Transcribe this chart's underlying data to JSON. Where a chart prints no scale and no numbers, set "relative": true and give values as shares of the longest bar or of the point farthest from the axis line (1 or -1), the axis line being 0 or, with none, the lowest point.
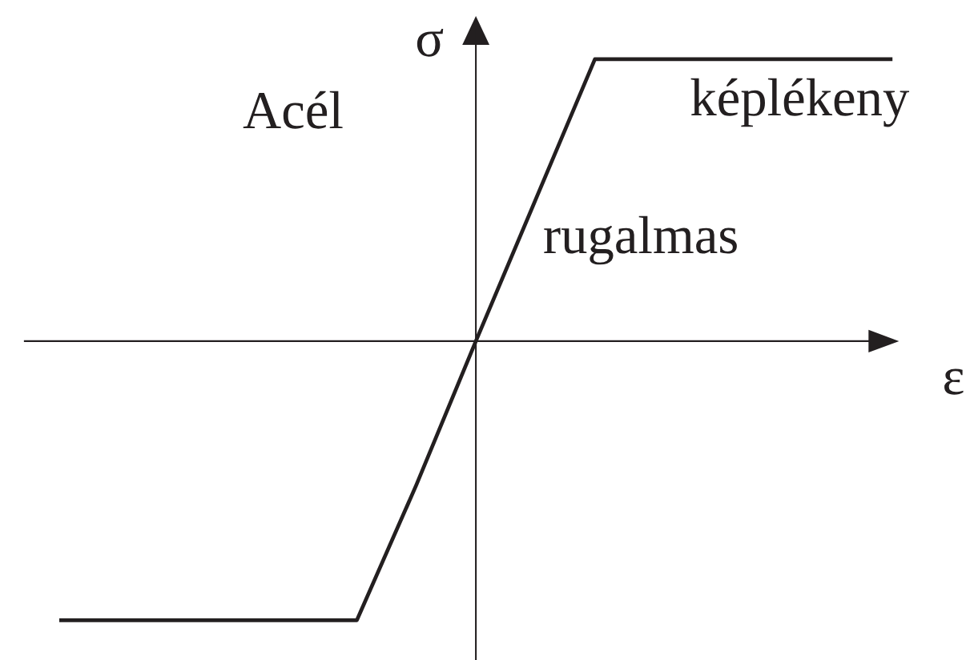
{
  "chart_data": {
    "type": "line",
    "title": "Acél",
    "xlabel": "ε",
    "ylabel": "σ",
    "relative": true,
    "categories": [
      null,
      null,
      null,
      null,
      null,
      null,
      null,
      null,
      null,
      null,
      null,
      null,
      null,
      null,
      null
    ],
    "series": [
      {
        "color": "#231f20",
        "values": [
          -0.99,
          -0.99,
          -0.99,
          -0.99,
          -0.99,
          -0.99,
          -0.51,
          0,
          0.5,
          1,
          1,
          1,
          1,
          1,
          1
        ]
      }
    ],
    "annotations": [
      "rugalmas",
      {
        "text": "képlékeny",
        "y": 1
      }
    ],
    "line_style": "solid"
  }
}
